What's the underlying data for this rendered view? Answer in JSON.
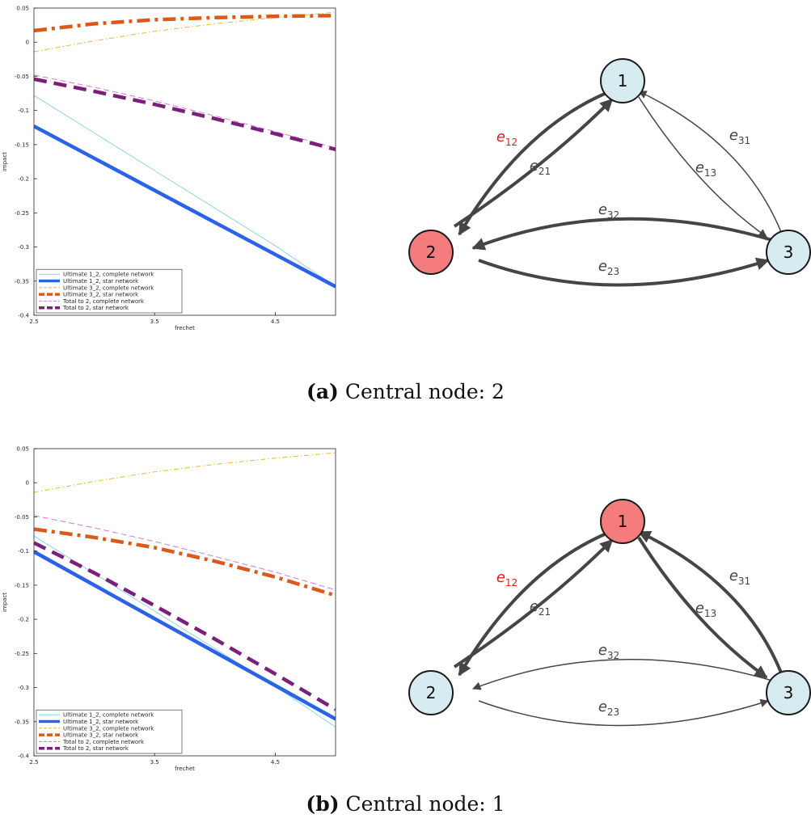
{
  "figure": {
    "panel_a": {
      "caption_label": "(a)",
      "caption_text": "Central node: 2"
    },
    "panel_b": {
      "caption_label": "(b)",
      "caption_text": "Central node: 1"
    }
  },
  "chart_data": [
    {
      "type": "line",
      "panel": "a",
      "xlabel": "frechet",
      "ylabel": "impact",
      "xlim": [
        2.5,
        5.0
      ],
      "ylim": [
        -0.4,
        0.05
      ],
      "xticks": [
        "2.5",
        "3.5",
        "4.5"
      ],
      "yticks": [
        "0.05",
        "0",
        "-0.05",
        "-0.1",
        "-0.15",
        "-0.2",
        "-0.25",
        "-0.3",
        "-0.35",
        "-0.4"
      ],
      "grid": false,
      "legend_position": "bottom-left",
      "x": [
        2.5,
        3.0,
        3.5,
        4.0,
        4.5,
        5.0
      ],
      "series": [
        {
          "name": "Ultimate 1_2, complete network",
          "color": "#8fd3e8",
          "style": "solid-thin",
          "values": [
            -0.078,
            -0.133,
            -0.188,
            -0.243,
            -0.298,
            -0.358
          ]
        },
        {
          "name": "Ultimate 1_2, star network",
          "color": "#2a62e8",
          "style": "solid-thick",
          "values": [
            -0.123,
            -0.17,
            -0.217,
            -0.264,
            -0.311,
            -0.358
          ]
        },
        {
          "name": "Ultimate 3_2, complete network",
          "color": "#e8b830",
          "style": "dashdot-thin",
          "values": [
            -0.014,
            0.002,
            0.016,
            0.027,
            0.036,
            0.044
          ]
        },
        {
          "name": "Ultimate 3_2, star network",
          "color": "#d95a1a",
          "style": "dashdot-thick",
          "values": [
            0.017,
            0.027,
            0.033,
            0.036,
            0.038,
            0.039
          ]
        },
        {
          "name": "Total to 2, complete network",
          "color": "#d677d6",
          "style": "dashed-thin",
          "values": [
            -0.048,
            -0.066,
            -0.086,
            -0.108,
            -0.131,
            -0.155
          ]
        },
        {
          "name": "Total to 2, star network",
          "color": "#7a1f7a",
          "style": "dashed-thick",
          "values": [
            -0.054,
            -0.072,
            -0.091,
            -0.112,
            -0.134,
            -0.157
          ]
        }
      ]
    },
    {
      "type": "line",
      "panel": "b",
      "xlabel": "frechet",
      "ylabel": "impact",
      "xlim": [
        2.5,
        5.0
      ],
      "ylim": [
        -0.4,
        0.05
      ],
      "xticks": [
        "2.5",
        "3.5",
        "4.5"
      ],
      "yticks": [
        "0.05",
        "0",
        "-0.05",
        "-0.1",
        "-0.15",
        "-0.2",
        "-0.25",
        "-0.3",
        "-0.35",
        "-0.4"
      ],
      "grid": false,
      "legend_position": "bottom-left",
      "x": [
        2.5,
        3.0,
        3.5,
        4.0,
        4.5,
        5.0
      ],
      "series": [
        {
          "name": "Ultimate 1_2, complete network",
          "color": "#8fd3e8",
          "style": "solid-thin",
          "values": [
            -0.078,
            -0.133,
            -0.188,
            -0.243,
            -0.298,
            -0.358
          ]
        },
        {
          "name": "Ultimate 1_2, star network",
          "color": "#2a62e8",
          "style": "solid-thick",
          "values": [
            -0.101,
            -0.15,
            -0.199,
            -0.248,
            -0.297,
            -0.346
          ]
        },
        {
          "name": "Ultimate 3_2, complete network",
          "color": "#e8b830",
          "style": "dashdot-thin",
          "values": [
            -0.014,
            0.002,
            0.016,
            0.027,
            0.036,
            0.044
          ]
        },
        {
          "name": "Ultimate 3_2, star network",
          "color": "#d95a1a",
          "style": "dashdot-thick",
          "values": [
            -0.068,
            -0.08,
            -0.095,
            -0.115,
            -0.138,
            -0.165
          ]
        },
        {
          "name": "Total to 2, complete network",
          "color": "#d677d6",
          "style": "dashed-thin",
          "values": [
            -0.048,
            -0.066,
            -0.086,
            -0.108,
            -0.131,
            -0.157
          ]
        },
        {
          "name": "Total to 2, star network",
          "color": "#7a1f7a",
          "style": "dashed-thick",
          "values": [
            -0.088,
            -0.132,
            -0.18,
            -0.229,
            -0.28,
            -0.332
          ]
        }
      ]
    }
  ],
  "diagrams": [
    {
      "panel": "a",
      "central_node": "2",
      "nodes": [
        {
          "id": "1",
          "label": "1",
          "fill": "#d6ecf0",
          "central": false
        },
        {
          "id": "2",
          "label": "2",
          "fill": "#f47c7c",
          "central": true
        },
        {
          "id": "3",
          "label": "3",
          "fill": "#d6ecf0",
          "central": false
        }
      ],
      "edges": [
        {
          "from": "1",
          "to": "2",
          "label": "e",
          "sub": "12",
          "thick": true,
          "label_color": "#e01b1b"
        },
        {
          "from": "2",
          "to": "1",
          "label": "e",
          "sub": "21",
          "thick": true,
          "label_color": "#444444"
        },
        {
          "from": "1",
          "to": "3",
          "label": "e",
          "sub": "13",
          "thick": false,
          "label_color": "#444444"
        },
        {
          "from": "3",
          "to": "1",
          "label": "e",
          "sub": "31",
          "thick": false,
          "label_color": "#444444"
        },
        {
          "from": "3",
          "to": "2",
          "label": "e",
          "sub": "32",
          "thick": true,
          "label_color": "#444444"
        },
        {
          "from": "2",
          "to": "3",
          "label": "e",
          "sub": "23",
          "thick": true,
          "label_color": "#444444"
        }
      ]
    },
    {
      "panel": "b",
      "central_node": "1",
      "nodes": [
        {
          "id": "1",
          "label": "1",
          "fill": "#f47c7c",
          "central": true
        },
        {
          "id": "2",
          "label": "2",
          "fill": "#d6ecf0",
          "central": false
        },
        {
          "id": "3",
          "label": "3",
          "fill": "#d6ecf0",
          "central": false
        }
      ],
      "edges": [
        {
          "from": "1",
          "to": "2",
          "label": "e",
          "sub": "12",
          "thick": true,
          "label_color": "#e01b1b"
        },
        {
          "from": "2",
          "to": "1",
          "label": "e",
          "sub": "21",
          "thick": true,
          "label_color": "#444444"
        },
        {
          "from": "1",
          "to": "3",
          "label": "e",
          "sub": "13",
          "thick": true,
          "label_color": "#444444"
        },
        {
          "from": "3",
          "to": "1",
          "label": "e",
          "sub": "31",
          "thick": true,
          "label_color": "#444444"
        },
        {
          "from": "3",
          "to": "2",
          "label": "e",
          "sub": "32",
          "thick": false,
          "label_color": "#444444"
        },
        {
          "from": "2",
          "to": "3",
          "label": "e",
          "sub": "23",
          "thick": false,
          "label_color": "#444444"
        }
      ]
    }
  ]
}
